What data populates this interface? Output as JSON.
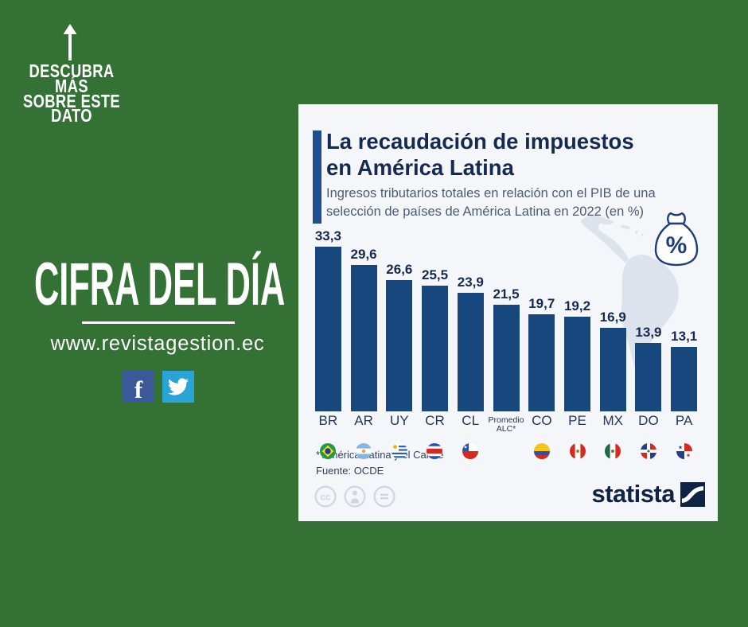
{
  "colors": {
    "background_green": "#337134",
    "card_background": "#f4f6f9",
    "navy_text": "#152a4e",
    "accent_blue": "#1d4f91",
    "bar_blue": "#17477d",
    "facebook_blue": "#3b5998",
    "twitter_blue": "#2aa3d6"
  },
  "promo": {
    "discover_lines": [
      "DESCUBRA MÁS",
      "SOBRE ESTE",
      "DATO"
    ],
    "headline": "CIFRA DEL DÍA",
    "website": "www.revistagestion.ec",
    "social": [
      {
        "name": "facebook"
      },
      {
        "name": "twitter"
      }
    ]
  },
  "card": {
    "title_lines": [
      "La recaudación de impuestos",
      "en América Latina"
    ],
    "subtitle": "Ingresos tributarios totales en relación con el PIB de una selección de países de América Latina en 2022 (en %)",
    "footnote": "* América Latina y el Caribe",
    "source": "Fuente: OCDE",
    "brand": "statista",
    "license_icons": [
      "cc",
      "attribution",
      "no-derivatives"
    ]
  },
  "chart_data": {
    "type": "bar",
    "title": "La recaudación de impuestos en América Latina",
    "subtitle": "Ingresos tributarios totales en relación con el PIB de una selección de países de América Latina en 2022 (en %)",
    "unit": "%",
    "ylim": [
      0,
      35
    ],
    "grid": false,
    "legend": false,
    "categories": [
      "BR",
      "AR",
      "UY",
      "CR",
      "CL",
      "Promedio ALC*",
      "CO",
      "PE",
      "MX",
      "DO",
      "PA"
    ],
    "values": [
      33.3,
      29.6,
      26.6,
      25.5,
      23.9,
      21.5,
      19.7,
      19.2,
      16.9,
      13.9,
      13.1
    ],
    "bars": [
      {
        "label_lines": [
          "BR"
        ],
        "flag": "br",
        "value": 33.3,
        "value_label": "33,3"
      },
      {
        "label_lines": [
          "AR"
        ],
        "flag": "ar",
        "value": 29.6,
        "value_label": "29,6"
      },
      {
        "label_lines": [
          "UY"
        ],
        "flag": "uy",
        "value": 26.6,
        "value_label": "26,6"
      },
      {
        "label_lines": [
          "CR"
        ],
        "flag": "cr",
        "value": 25.5,
        "value_label": "25,5"
      },
      {
        "label_lines": [
          "CL"
        ],
        "flag": "cl",
        "value": 23.9,
        "value_label": "23,9"
      },
      {
        "label_lines": [
          "Promedio",
          "ALC*"
        ],
        "flag": null,
        "value": 21.5,
        "value_label": "21,5"
      },
      {
        "label_lines": [
          "CO"
        ],
        "flag": "co",
        "value": 19.7,
        "value_label": "19,7"
      },
      {
        "label_lines": [
          "PE"
        ],
        "flag": "pe",
        "value": 19.2,
        "value_label": "19,2"
      },
      {
        "label_lines": [
          "MX"
        ],
        "flag": "mx",
        "value": 16.9,
        "value_label": "16,9"
      },
      {
        "label_lines": [
          "DO"
        ],
        "flag": "do",
        "value": 13.9,
        "value_label": "13,9"
      },
      {
        "label_lines": [
          "PA"
        ],
        "flag": "pa",
        "value": 13.1,
        "value_label": "13,1"
      }
    ]
  }
}
